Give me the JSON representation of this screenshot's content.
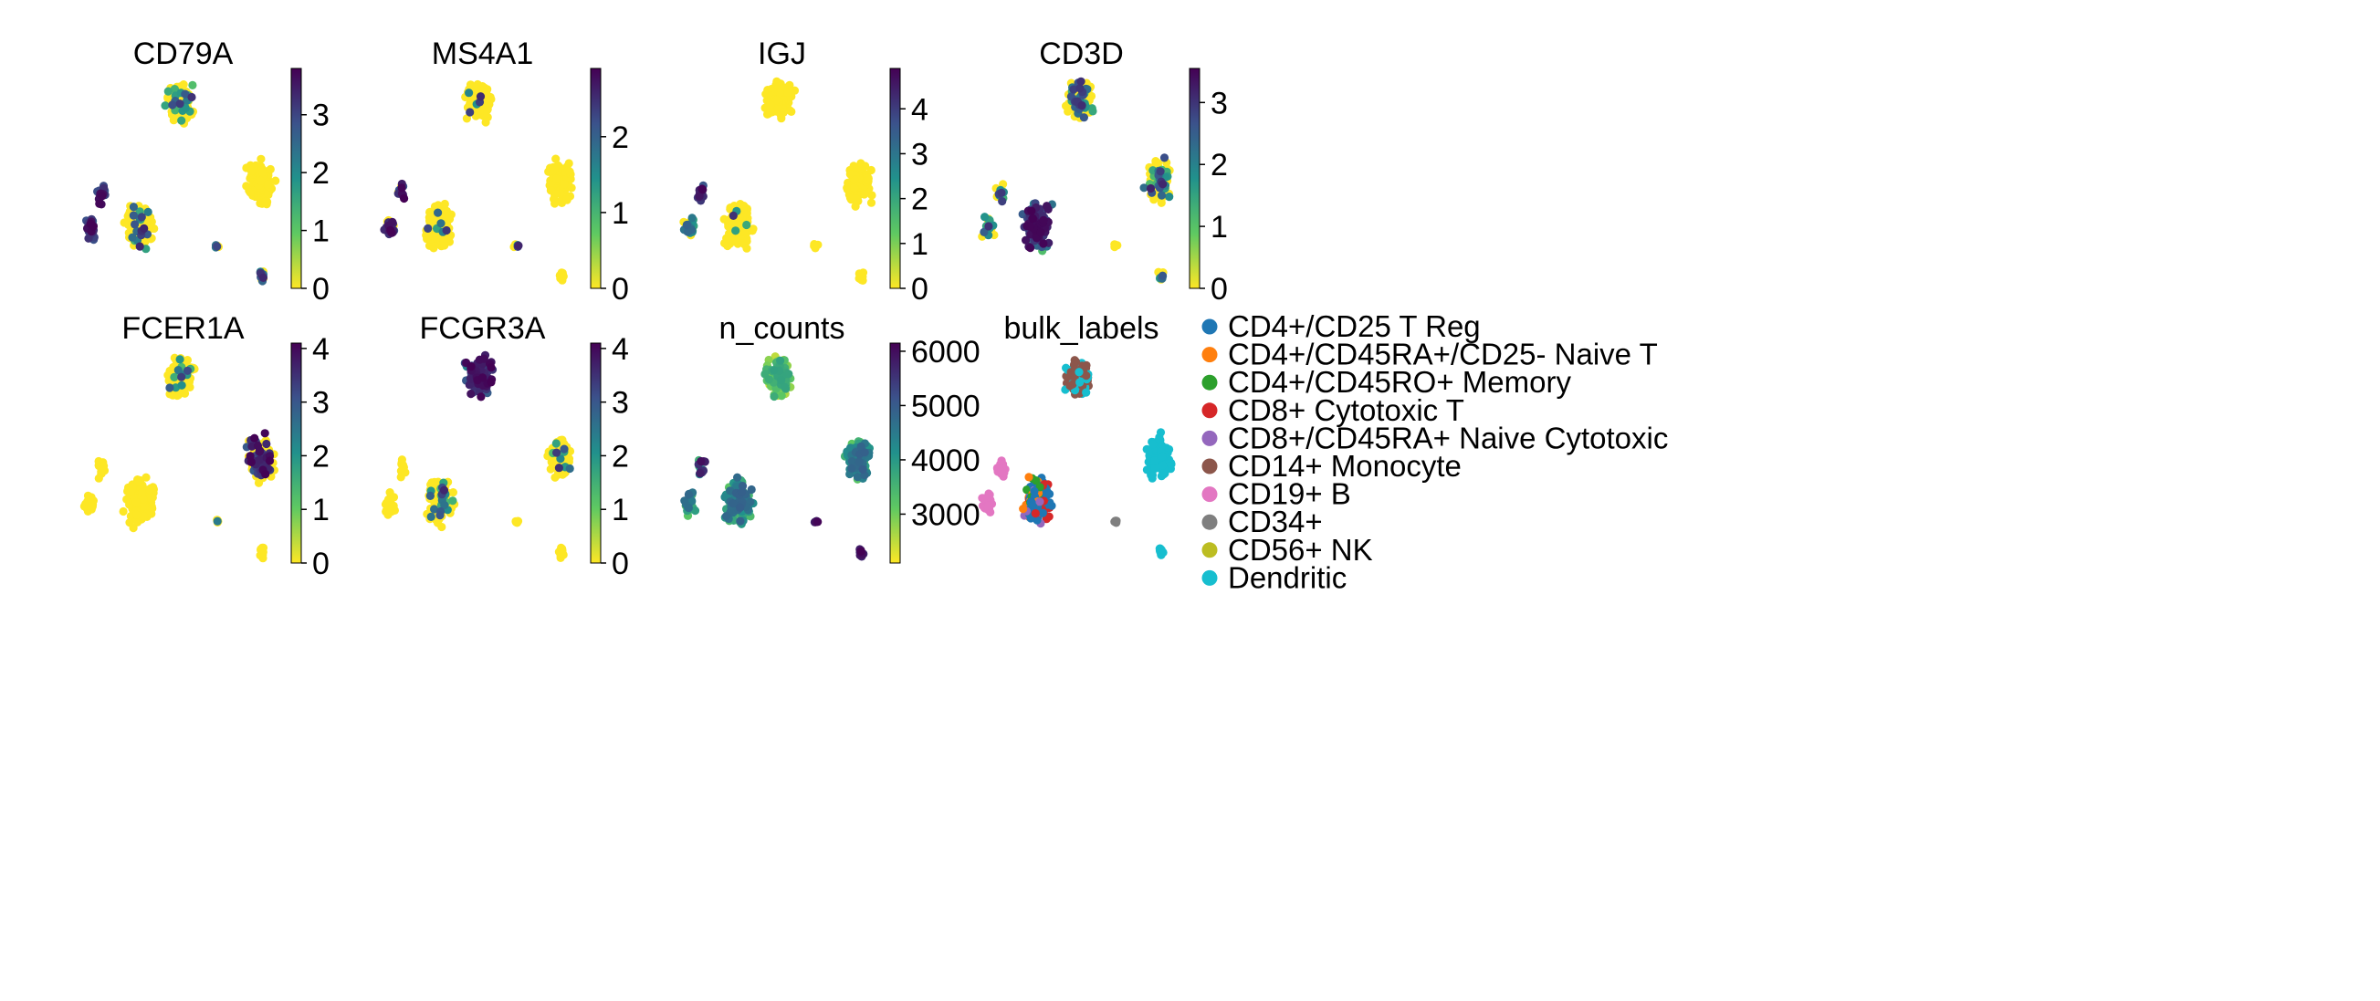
{
  "figure_kind": "UMAP embedding panels",
  "colormap_stops": [
    "#fde725",
    "#5ec962",
    "#21918c",
    "#3b528b",
    "#440154"
  ],
  "chart_data": [
    {
      "type": "scatter",
      "title": "CD79A",
      "color_kind": "continuous",
      "colorbar_range": [
        0,
        3.8
      ],
      "colorbar_ticks": [
        0,
        1,
        2,
        3
      ],
      "colorbar_tick_labels": [
        "0",
        "1",
        "2",
        "3"
      ]
    },
    {
      "type": "scatter",
      "title": "MS4A1",
      "color_kind": "continuous",
      "colorbar_range": [
        0,
        2.9
      ],
      "colorbar_ticks": [
        0,
        1,
        2
      ],
      "colorbar_tick_labels": [
        "0",
        "1",
        "2"
      ]
    },
    {
      "type": "scatter",
      "title": "IGJ",
      "color_kind": "continuous",
      "colorbar_range": [
        0,
        4.9
      ],
      "colorbar_ticks": [
        0,
        1,
        2,
        3,
        4
      ],
      "colorbar_tick_labels": [
        "0",
        "1",
        "2",
        "3",
        "4"
      ]
    },
    {
      "type": "scatter",
      "title": "CD3D",
      "color_kind": "continuous",
      "colorbar_range": [
        0,
        3.55
      ],
      "colorbar_ticks": [
        0,
        1,
        2,
        3
      ],
      "colorbar_tick_labels": [
        "0",
        "1",
        "2",
        "3"
      ]
    },
    {
      "type": "scatter",
      "title": "FCER1A",
      "color_kind": "continuous",
      "colorbar_range": [
        0,
        4.1
      ],
      "colorbar_ticks": [
        0,
        1,
        2,
        3,
        4
      ],
      "colorbar_tick_labels": [
        "0",
        "1",
        "2",
        "3",
        "4"
      ]
    },
    {
      "type": "scatter",
      "title": "FCGR3A",
      "color_kind": "continuous",
      "colorbar_range": [
        0,
        4.1
      ],
      "colorbar_ticks": [
        0,
        1,
        2,
        3,
        4
      ],
      "colorbar_tick_labels": [
        "0",
        "1",
        "2",
        "3",
        "4"
      ]
    },
    {
      "type": "scatter",
      "title": "n_counts",
      "color_kind": "continuous",
      "colorbar_range": [
        2100,
        6150
      ],
      "colorbar_ticks": [
        3000,
        4000,
        5000,
        6000
      ],
      "colorbar_tick_labels": [
        "3000",
        "4000",
        "5000",
        "6000"
      ]
    },
    {
      "type": "scatter",
      "title": "bulk_labels",
      "color_kind": "categorical",
      "legend": [
        {
          "label": "CD4+/CD25 T Reg",
          "color": "#1f77b4"
        },
        {
          "label": "CD4+/CD45RA+/CD25- Naive T",
          "color": "#ff7f0e"
        },
        {
          "label": "CD4+/CD45RO+ Memory",
          "color": "#2ca02c"
        },
        {
          "label": "CD8+ Cytotoxic T",
          "color": "#d62728"
        },
        {
          "label": "CD8+/CD45RA+ Naive Cytotoxic",
          "color": "#9467bd"
        },
        {
          "label": "CD14+ Monocyte",
          "color": "#8c564b"
        },
        {
          "label": "CD19+ B",
          "color": "#e377c2"
        },
        {
          "label": "CD34+",
          "color": "#7f7f7f"
        },
        {
          "label": "CD56+ NK",
          "color": "#bcbd22"
        },
        {
          "label": "Dendritic",
          "color": "#17becf"
        }
      ]
    }
  ]
}
